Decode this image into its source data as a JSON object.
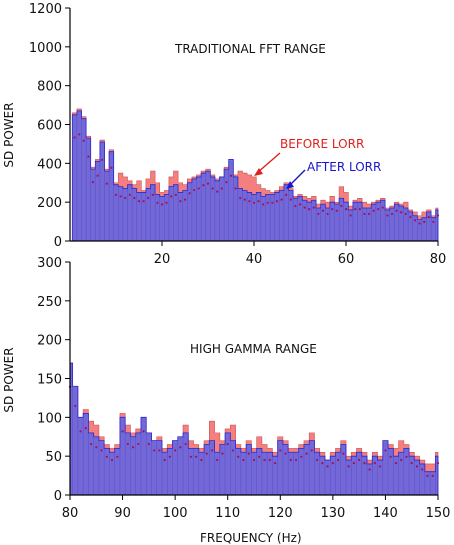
{
  "colors": {
    "before": "#f47f7f",
    "after": "#6666e0",
    "after_line": "#2a2acc",
    "before_annot": "#e0201c",
    "after_annot": "#1818c8",
    "dots": "#a01060",
    "axis": "#000000"
  },
  "chart_data": [
    {
      "type": "area",
      "title": "TRADITIONAL FFT RANGE",
      "xlabel": "",
      "ylabel": "SD POWER",
      "xlim": [
        0,
        80
      ],
      "ylim": [
        0,
        1200
      ],
      "xticks": [
        20,
        40,
        60,
        80
      ],
      "yticks": [
        0,
        200,
        400,
        600,
        800,
        1000,
        1200
      ],
      "grid": false,
      "annotations": [
        {
          "text": "BEFORE LORR",
          "series": "before",
          "x": 40,
          "y": 400
        },
        {
          "text": "AFTER LORR",
          "series": "after",
          "x": 48,
          "y": 340
        }
      ],
      "series": [
        {
          "name": "BEFORE LORR",
          "x": [
            1,
            2,
            3,
            4,
            5,
            6,
            7,
            8,
            9,
            10,
            11,
            12,
            13,
            14,
            15,
            16,
            17,
            18,
            19,
            20,
            21,
            22,
            23,
            24,
            25,
            26,
            27,
            28,
            29,
            30,
            31,
            32,
            33,
            34,
            35,
            36,
            37,
            38,
            39,
            40,
            41,
            42,
            43,
            44,
            45,
            46,
            47,
            48,
            49,
            50,
            51,
            52,
            53,
            54,
            55,
            56,
            57,
            58,
            59,
            60,
            61,
            62,
            63,
            64,
            65,
            66,
            67,
            68,
            69,
            70,
            71,
            72,
            73,
            74,
            75,
            76,
            77,
            78,
            79,
            80
          ],
          "values": [
            660,
            680,
            640,
            540,
            380,
            420,
            520,
            370,
            470,
            300,
            350,
            330,
            310,
            290,
            310,
            260,
            320,
            360,
            300,
            250,
            260,
            330,
            360,
            300,
            290,
            320,
            330,
            340,
            360,
            370,
            340,
            320,
            330,
            380,
            410,
            340,
            360,
            350,
            340,
            330,
            290,
            270,
            260,
            250,
            260,
            280,
            300,
            270,
            230,
            240,
            230,
            220,
            230,
            190,
            210,
            200,
            230,
            200,
            280,
            250,
            180,
            210,
            220,
            200,
            190,
            200,
            210,
            220,
            170,
            180,
            200,
            190,
            200,
            160,
            150,
            130,
            150,
            160,
            130,
            170
          ]
        },
        {
          "name": "AFTER LORR",
          "x": [
            1,
            2,
            3,
            4,
            5,
            6,
            7,
            8,
            9,
            10,
            11,
            12,
            13,
            14,
            15,
            16,
            17,
            18,
            19,
            20,
            21,
            22,
            23,
            24,
            25,
            26,
            27,
            28,
            29,
            30,
            31,
            32,
            33,
            34,
            35,
            36,
            37,
            38,
            39,
            40,
            41,
            42,
            43,
            44,
            45,
            46,
            47,
            48,
            49,
            50,
            51,
            52,
            53,
            54,
            55,
            56,
            57,
            58,
            59,
            60,
            61,
            62,
            63,
            64,
            65,
            66,
            67,
            68,
            69,
            70,
            71,
            72,
            73,
            74,
            75,
            76,
            77,
            78,
            79,
            80
          ],
          "values": [
            650,
            670,
            630,
            530,
            370,
            410,
            510,
            360,
            460,
            290,
            280,
            270,
            290,
            270,
            250,
            250,
            270,
            290,
            240,
            230,
            240,
            280,
            290,
            250,
            260,
            300,
            320,
            330,
            350,
            360,
            330,
            310,
            330,
            370,
            420,
            330,
            270,
            260,
            250,
            240,
            250,
            230,
            240,
            240,
            250,
            260,
            290,
            260,
            220,
            230,
            210,
            200,
            210,
            170,
            190,
            170,
            200,
            190,
            220,
            200,
            160,
            200,
            200,
            170,
            170,
            190,
            200,
            210,
            160,
            170,
            190,
            180,
            170,
            150,
            130,
            110,
            120,
            150,
            120,
            160
          ]
        }
      ]
    },
    {
      "type": "area",
      "title": "HIGH GAMMA RANGE",
      "xlabel": "FREQUENCY  (Hz)",
      "ylabel": "SD POWER",
      "xlim": [
        80,
        150
      ],
      "ylim": [
        0,
        300
      ],
      "xticks": [
        80,
        90,
        100,
        110,
        120,
        130,
        140,
        150
      ],
      "yticks": [
        0,
        50,
        100,
        150,
        200,
        250,
        300
      ],
      "grid": false,
      "series": [
        {
          "name": "BEFORE LORR",
          "x": [
            80,
            81,
            82,
            83,
            84,
            85,
            86,
            87,
            88,
            89,
            90,
            91,
            92,
            93,
            94,
            95,
            96,
            97,
            98,
            99,
            100,
            101,
            102,
            103,
            104,
            105,
            106,
            107,
            108,
            109,
            110,
            111,
            112,
            113,
            114,
            115,
            116,
            117,
            118,
            119,
            120,
            121,
            122,
            123,
            124,
            125,
            126,
            127,
            128,
            129,
            130,
            131,
            132,
            133,
            134,
            135,
            136,
            137,
            138,
            139,
            140,
            141,
            142,
            143,
            144,
            145,
            146,
            147,
            148,
            149,
            150
          ],
          "values": [
            170,
            140,
            100,
            110,
            95,
            90,
            75,
            65,
            60,
            65,
            105,
            90,
            80,
            85,
            100,
            80,
            70,
            75,
            60,
            65,
            70,
            75,
            90,
            70,
            65,
            60,
            70,
            95,
            80,
            70,
            85,
            90,
            65,
            60,
            70,
            60,
            75,
            65,
            60,
            55,
            75,
            70,
            60,
            60,
            65,
            70,
            80,
            60,
            55,
            45,
            55,
            60,
            70,
            50,
            55,
            60,
            55,
            45,
            55,
            50,
            70,
            65,
            60,
            70,
            65,
            55,
            50,
            45,
            40,
            40,
            55
          ]
        },
        {
          "name": "AFTER LORR",
          "x": [
            80,
            81,
            82,
            83,
            84,
            85,
            86,
            87,
            88,
            89,
            90,
            91,
            92,
            93,
            94,
            95,
            96,
            97,
            98,
            99,
            100,
            101,
            102,
            103,
            104,
            105,
            106,
            107,
            108,
            109,
            110,
            111,
            112,
            113,
            114,
            115,
            116,
            117,
            118,
            119,
            120,
            121,
            122,
            123,
            124,
            125,
            126,
            127,
            128,
            129,
            130,
            131,
            132,
            133,
            134,
            135,
            136,
            137,
            138,
            139,
            140,
            141,
            142,
            143,
            144,
            145,
            146,
            147,
            148,
            149,
            150
          ],
          "values": [
            170,
            140,
            100,
            105,
            80,
            75,
            70,
            60,
            55,
            60,
            100,
            80,
            75,
            80,
            100,
            80,
            70,
            70,
            55,
            60,
            70,
            75,
            80,
            60,
            60,
            55,
            65,
            70,
            55,
            65,
            80,
            70,
            60,
            55,
            65,
            55,
            60,
            55,
            55,
            50,
            70,
            65,
            55,
            55,
            60,
            65,
            70,
            55,
            50,
            45,
            50,
            55,
            65,
            45,
            50,
            55,
            50,
            40,
            50,
            45,
            70,
            60,
            50,
            55,
            60,
            50,
            45,
            40,
            30,
            30,
            50
          ]
        }
      ]
    }
  ]
}
